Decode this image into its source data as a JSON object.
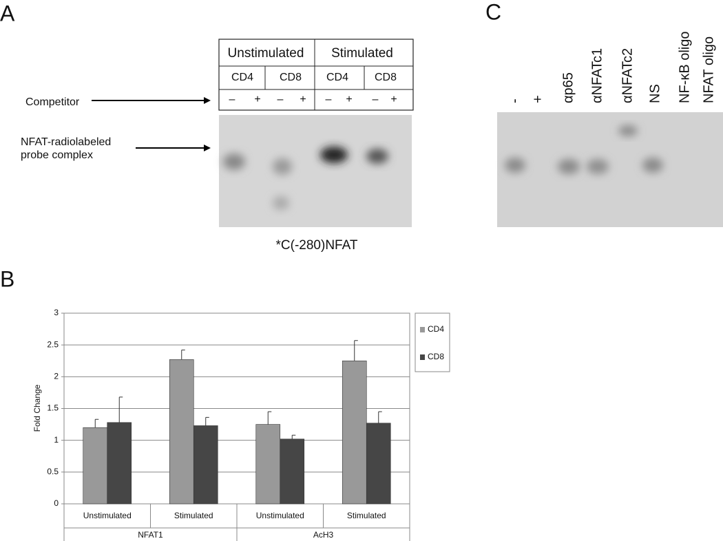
{
  "panel_a": {
    "letter": "A",
    "conditions": [
      "Unstimulated",
      "Stimulated"
    ],
    "cells": [
      "CD4",
      "CD8",
      "CD4",
      "CD8"
    ],
    "signs": [
      "–",
      "+",
      "–",
      "+",
      "–",
      "+",
      "–",
      "+"
    ],
    "competitor": "Competitor",
    "complex_label": [
      "NFAT-radiolabeled",
      "probe complex"
    ],
    "probe": "*C(-280)NFAT"
  },
  "panel_c": {
    "letter": "C",
    "lanes": [
      "-",
      "+",
      "αp65",
      "αNFATc1",
      "αNFATc2",
      "NS",
      "NF-κB oligo",
      "NFAT oligo"
    ]
  },
  "chart_data": {
    "type": "bar",
    "letter": "B",
    "y_label": "Fold Change",
    "categories": [
      "Unstimulated",
      "Stimulated",
      "Unstimulated",
      "Stimulated"
    ],
    "groups": [
      "NFAT1",
      "AcH3"
    ],
    "series": [
      {
        "name": "CD4",
        "color": "#999999",
        "values": [
          1.2,
          2.27,
          1.25,
          2.25
        ],
        "errors": [
          0.13,
          0.15,
          0.2,
          0.32
        ]
      },
      {
        "name": "CD8",
        "color": "#464646",
        "values": [
          1.28,
          1.23,
          1.02,
          1.27
        ],
        "errors": [
          0.4,
          0.13,
          0.06,
          0.18
        ]
      }
    ],
    "ylim": [
      0,
      3
    ],
    "yticks": [
      0,
      0.5,
      1,
      1.5,
      2,
      2.5,
      3
    ],
    "grid": true,
    "legend": "right"
  }
}
